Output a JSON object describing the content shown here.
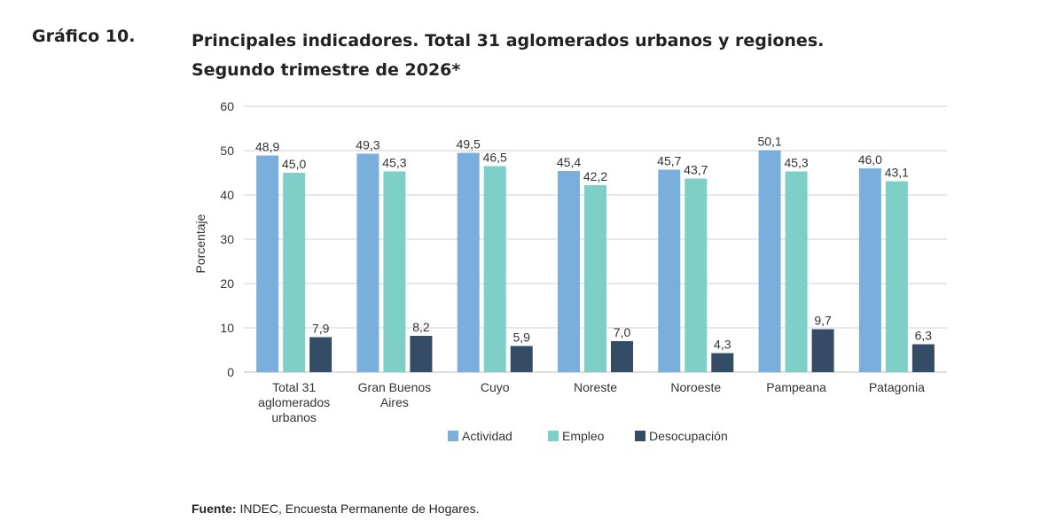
{
  "figure": {
    "number": "Gráfico 10.",
    "title_line1": "Principales indicadores. Total 31 aglomerados urbanos y regiones.",
    "title_line2": "Segundo trimestre de 2026*"
  },
  "source": {
    "label": "Fuente:",
    "text": " INDEC, Encuesta Permanente de Hogares."
  },
  "colors": {
    "actividad": "#7aaedc",
    "empleo": "#7dcfc8",
    "desocupacion": "#344c66",
    "grid": "#d0d0d0"
  },
  "chart_data": {
    "type": "bar",
    "ylabel": "Porcentaje",
    "ylim": [
      0,
      60
    ],
    "yticks": [
      0,
      10,
      20,
      30,
      40,
      50,
      60
    ],
    "grid": true,
    "legend_position": "bottom",
    "categories": [
      [
        "Total 31",
        "aglomerados",
        "urbanos"
      ],
      [
        "Gran Buenos",
        "Aires"
      ],
      [
        "Cuyo"
      ],
      [
        "Noreste"
      ],
      [
        "Noroeste"
      ],
      [
        "Pampeana"
      ],
      [
        "Patagonia"
      ]
    ],
    "series": [
      {
        "name": "Actividad",
        "values": [
          48.9,
          49.3,
          49.5,
          45.4,
          45.7,
          50.1,
          46.0
        ],
        "labels": [
          "48,9",
          "49,3",
          "49,5",
          "45,4",
          "45,7",
          "50,1",
          "46,0"
        ]
      },
      {
        "name": "Empleo",
        "values": [
          45.0,
          45.3,
          46.5,
          42.2,
          43.7,
          45.3,
          43.1
        ],
        "labels": [
          "45,0",
          "45,3",
          "46,5",
          "42,2",
          "43,7",
          "45,3",
          "43,1"
        ]
      },
      {
        "name": "Desocupación",
        "values": [
          7.9,
          8.2,
          5.9,
          7.0,
          4.3,
          9.7,
          6.3
        ],
        "labels": [
          "7,9",
          "8,2",
          "5,9",
          "7,0",
          "4,3",
          "9,7",
          "6,3"
        ]
      }
    ]
  }
}
